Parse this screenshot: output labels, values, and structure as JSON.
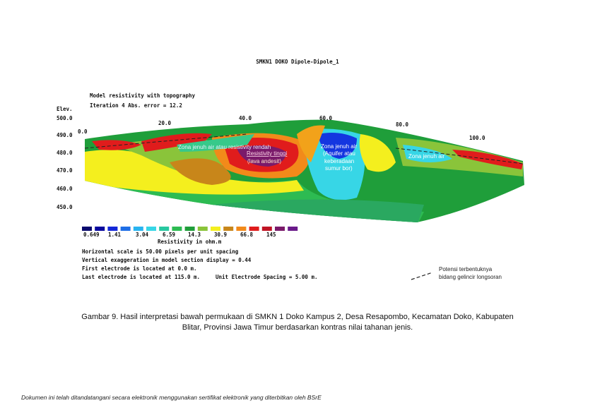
{
  "figure": {
    "title": "SMKN1 DOKO Dipole-Dipole_1",
    "subtitle_lines": [
      "Model resistivity with topography",
      "Iteration 4 Abs. error = 12.2"
    ],
    "elev_label": "Elev.",
    "elev_ticks": [
      "500.0",
      "490.0",
      "480.0",
      "470.0",
      "460.0",
      "450.0"
    ],
    "x_ticks": [
      "0.0",
      "20.0",
      "40.0",
      "60.0",
      "80.0",
      "100.0"
    ],
    "scale_labels": [
      "0.649",
      "1.41",
      "3.04",
      "6.59",
      "14.3",
      "30.9",
      "66.8",
      "145"
    ],
    "scale_title": "Resistivity in ohm.m",
    "notes": [
      "Horizontal scale is 50.00 pixels per unit spacing",
      "Vertical exaggeration in model section display = 0.44",
      "First electrode is located at 0.0  m.",
      "Last electrode is located at 115.0 m."
    ],
    "spacing_note": "Unit Electrode Spacing = 5.00 m.",
    "annotations": [
      "Zona jenuh air atau resistivity rendah",
      "Resistivity tinggi",
      "(lava andesit)",
      "Zona jenuh air",
      "(Aquifer atau",
      "keberadaan",
      "sumur bor)",
      "Zona jenuh air"
    ],
    "legend_lines": [
      "Potensi terbentuknya",
      "bidang gelincir longsoran"
    ]
  },
  "caption_lines": [
    "Gambar 9. Hasil interpretasi bawah permukaan di SMKN 1 Doko Kampus 2, Desa Resapombo, Kecamatan Doko, Kabupaten",
    "Blitar, Provinsi Jawa Timur berdasarkan kontras nilai tahanan jenis."
  ],
  "footer": "Dokumen ini telah ditandatangani secara elektronik menggunakan sertifikat elektronik yang diterbitkan oleh BSrE"
}
